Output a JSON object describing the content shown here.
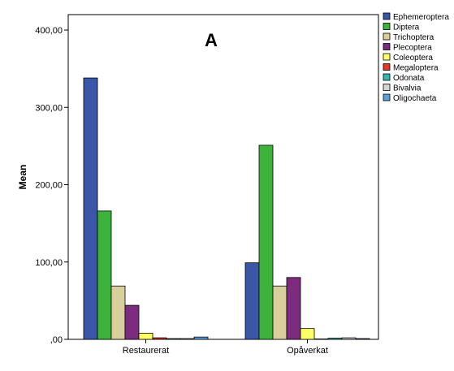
{
  "chart_data": {
    "type": "bar",
    "panel_label": "A",
    "ylabel": "Mean",
    "ylim": [
      0,
      420
    ],
    "yticks": [
      {
        "value": 0,
        "label": ",00"
      },
      {
        "value": 100,
        "label": "100,00"
      },
      {
        "value": 200,
        "label": "200,00"
      },
      {
        "value": 300,
        "label": "300,00"
      },
      {
        "value": 400,
        "label": "400,00"
      }
    ],
    "categories": [
      "Restaurerat",
      "Opåverkat"
    ],
    "legend_position": "right",
    "grid": false,
    "series": [
      {
        "name": "Ephemeroptera",
        "color": "#3a56a6",
        "values": [
          338,
          99
        ]
      },
      {
        "name": "Diptera",
        "color": "#3cb43c",
        "values": [
          166,
          251
        ]
      },
      {
        "name": "Trichoptera",
        "color": "#d8cf9c",
        "values": [
          69,
          69
        ]
      },
      {
        "name": "Plecoptera",
        "color": "#7b2c7e",
        "values": [
          44,
          80
        ]
      },
      {
        "name": "Coleoptera",
        "color": "#ffff66",
        "values": [
          8,
          14
        ]
      },
      {
        "name": "Megaloptera",
        "color": "#e6372a",
        "values": [
          2,
          0.5
        ]
      },
      {
        "name": "Odonata",
        "color": "#35b6b0",
        "values": [
          1,
          1.5
        ]
      },
      {
        "name": "Bivalvia",
        "color": "#d3d3d3",
        "values": [
          1,
          2
        ]
      },
      {
        "name": "Oligochaeta",
        "color": "#5ea0dc",
        "values": [
          3,
          1
        ]
      }
    ]
  }
}
